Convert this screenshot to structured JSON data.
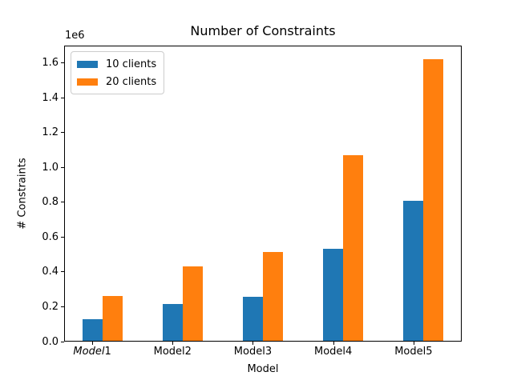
{
  "figure": {
    "background": "#ffffff",
    "text_color": "#000000",
    "spine_color": "#000000"
  },
  "chart_data": {
    "type": "bar",
    "title": "Number of Constraints",
    "xlabel": "Model",
    "ylabel": "# Constraints",
    "y_offset_label": "1e6",
    "grid": false,
    "legend_position": "upper left",
    "legend_border_color": "#cccccc",
    "categories": [
      {
        "prefix": "Model",
        "suffix": "1",
        "italic": true
      },
      {
        "prefix": "Model",
        "suffix": "2",
        "italic": false
      },
      {
        "prefix": "Model",
        "suffix": "3",
        "italic": false
      },
      {
        "prefix": "Model",
        "suffix": "4",
        "italic": false
      },
      {
        "prefix": "Model",
        "suffix": "5",
        "italic": false
      }
    ],
    "series": [
      {
        "name": "10 clients",
        "color": "#1f77b4",
        "offset": 0.0,
        "values": [
          130000,
          215000,
          258000,
          535000,
          810000
        ]
      },
      {
        "name": "20 clients",
        "color": "#ff7f0e",
        "offset": 0.25,
        "values": [
          260000,
          430000,
          516000,
          1070000,
          1620000
        ]
      }
    ],
    "bar_width": 0.25,
    "xlim": [
      -0.35,
      4.6
    ],
    "ylim": [
      0,
      1700000
    ],
    "yticks": [
      {
        "value": 0,
        "label": "0.0"
      },
      {
        "value": 200000,
        "label": "0.2"
      },
      {
        "value": 400000,
        "label": "0.4"
      },
      {
        "value": 600000,
        "label": "0.6"
      },
      {
        "value": 800000,
        "label": "0.8"
      },
      {
        "value": 1000000,
        "label": "1.0"
      },
      {
        "value": 1200000,
        "label": "1.2"
      },
      {
        "value": 1400000,
        "label": "1.4"
      },
      {
        "value": 1600000,
        "label": "1.6"
      }
    ]
  }
}
